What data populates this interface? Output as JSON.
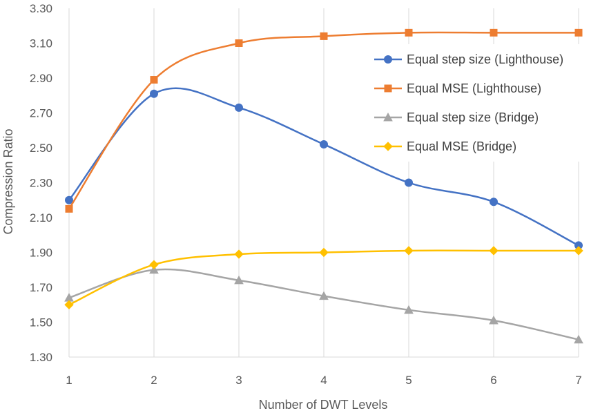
{
  "chart_data": {
    "type": "line",
    "title": "",
    "xlabel": "Number of DWT Levels",
    "ylabel": "Compression Ratio",
    "x": [
      1,
      2,
      3,
      4,
      5,
      6,
      7
    ],
    "xlim": [
      1,
      7
    ],
    "ylim": [
      1.3,
      3.3
    ],
    "yticks": [
      "1.30",
      "1.50",
      "1.70",
      "1.90",
      "2.10",
      "2.30",
      "2.50",
      "2.70",
      "2.90",
      "3.10",
      "3.30"
    ],
    "xticks": [
      "1",
      "2",
      "3",
      "4",
      "5",
      "6",
      "7"
    ],
    "grid": "vertical",
    "legend_position": "right",
    "smooth": true,
    "series": [
      {
        "name": "Equal step size (Lighthouse)",
        "color": "#4472C4",
        "marker": "circle",
        "values": [
          2.2,
          2.81,
          2.73,
          2.52,
          2.3,
          2.19,
          1.94
        ]
      },
      {
        "name": "Equal MSE (Lighthouse)",
        "color": "#ED7D31",
        "marker": "square",
        "values": [
          2.15,
          2.89,
          3.1,
          3.14,
          3.16,
          3.16,
          3.16
        ]
      },
      {
        "name": "Equal step size (Bridge)",
        "color": "#A5A5A5",
        "marker": "triangle",
        "values": [
          1.64,
          1.8,
          1.74,
          1.65,
          1.57,
          1.51,
          1.4
        ]
      },
      {
        "name": "Equal MSE (Bridge)",
        "color": "#FFC000",
        "marker": "diamond",
        "values": [
          1.6,
          1.83,
          1.89,
          1.9,
          1.91,
          1.91,
          1.91
        ]
      }
    ]
  }
}
